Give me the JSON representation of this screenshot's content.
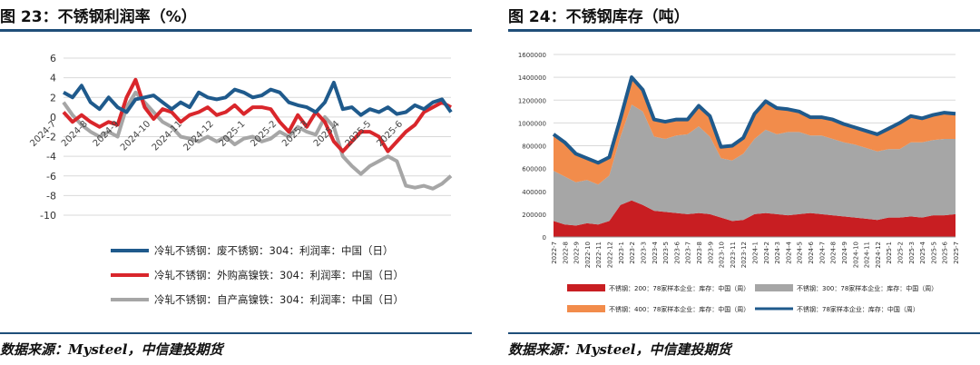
{
  "figures": [
    {
      "title": "图 23：不锈钢利润率（%）",
      "source": "数据来源：Mysteel，中信建投期货"
    },
    {
      "title": "图 24：不锈钢库存（吨）",
      "source": "数据来源：Mysteel，中信建投期货"
    }
  ],
  "chart_data": [
    {
      "type": "line",
      "title": "不锈钢利润率（%）",
      "ylim": [
        -10,
        6
      ],
      "yticks": [
        6,
        4,
        2,
        0,
        -2,
        -4,
        -6,
        -8,
        -10
      ],
      "xticks": [
        "2024-7",
        "2024-8",
        "2024-9",
        "2024-10",
        "2024-11",
        "2024-12",
        "2025-1",
        "2025-2",
        "2025-3",
        "2025-4",
        "2025-5",
        "2025-6"
      ],
      "grid": true,
      "legend_position": "bottom",
      "series": [
        {
          "name": "冷轧不锈钢：废不锈钢：304：利润率：中国（日）",
          "color": "#1f5a8c",
          "values": [
            2.5,
            2.0,
            3.2,
            1.5,
            0.8,
            2.0,
            1.0,
            0.5,
            1.8,
            2.0,
            2.2,
            1.5,
            0.8,
            1.5,
            1.0,
            2.5,
            2.0,
            1.8,
            2.0,
            2.8,
            2.5,
            2.0,
            2.2,
            2.8,
            2.5,
            1.5,
            1.2,
            1.0,
            0.5,
            1.5,
            3.5,
            0.8,
            1.0,
            0.2,
            0.8,
            0.5,
            1.0,
            0.3,
            0.5,
            1.2,
            0.8,
            1.5,
            1.8,
            0.5
          ]
        },
        {
          "name": "冷轧不锈钢：外购高镍铁：304：利润率：中国（日）",
          "color": "#d9262b",
          "values": [
            0.5,
            -0.5,
            0.2,
            -0.5,
            -1.0,
            -0.5,
            -0.8,
            2.0,
            3.8,
            1.0,
            -0.2,
            0.8,
            0.5,
            -0.5,
            0.2,
            0.5,
            1.0,
            0.2,
            0.5,
            1.2,
            0.3,
            1.0,
            1.0,
            0.8,
            -0.5,
            -1.5,
            0.2,
            -1.0,
            0.5,
            -0.5,
            -2.5,
            -3.5,
            -2.5,
            -1.5,
            -1.5,
            -2.0,
            -3.5,
            -2.5,
            -1.5,
            -0.8,
            0.5,
            1.0,
            1.5,
            1.0
          ]
        },
        {
          "name": "冷轧不锈钢：自产高镍铁：304：利润率：中国（日）",
          "color": "#a6a6a6",
          "values": [
            1.5,
            0.2,
            -0.8,
            -1.5,
            -2.0,
            -1.5,
            -2.0,
            1.0,
            2.5,
            1.5,
            0.5,
            -0.5,
            -1.0,
            -2.0,
            -2.2,
            -2.5,
            -2.0,
            -2.5,
            -2.0,
            -2.8,
            -2.2,
            -2.0,
            -2.5,
            -2.2,
            -1.5,
            -2.0,
            -1.0,
            -1.5,
            -1.8,
            0.0,
            -1.0,
            -4.0,
            -5.0,
            -5.8,
            -5.0,
            -4.5,
            -4.0,
            -4.5,
            -7.0,
            -7.2,
            -7.0,
            -7.3,
            -6.8,
            -6.0
          ]
        }
      ]
    },
    {
      "type": "area",
      "title": "不锈钢库存（吨）",
      "ylim": [
        0,
        1600000
      ],
      "yticks": [
        0,
        200000,
        400000,
        600000,
        800000,
        1000000,
        1200000,
        1400000,
        1600000
      ],
      "categories": [
        "2022-7",
        "2022-8",
        "2022-9",
        "2022-10",
        "2022-11",
        "2022-12",
        "2023-1",
        "2023-2",
        "2023-3",
        "2023-4",
        "2023-5",
        "2023-6",
        "2023-7",
        "2023-8",
        "2023-9",
        "2023-10",
        "2023-11",
        "2023-12",
        "2024-1",
        "2024-2",
        "2024-3",
        "2024-4",
        "2024-5",
        "2024-6",
        "2024-7",
        "2024-8",
        "2024-9",
        "2024-10",
        "2024-11",
        "2024-12",
        "2025-1",
        "2025-2",
        "2025-3",
        "2025-4",
        "2025-5",
        "2025-6",
        "2025-7"
      ],
      "grid": true,
      "legend_position": "bottom",
      "series": [
        {
          "name": "不锈钢：200：78家样本企业：库存：中国（周）",
          "color": "#c81e22",
          "kind": "area",
          "values": [
            140000,
            110000,
            100000,
            120000,
            110000,
            140000,
            280000,
            320000,
            280000,
            230000,
            220000,
            210000,
            200000,
            210000,
            200000,
            170000,
            140000,
            150000,
            200000,
            210000,
            200000,
            190000,
            200000,
            210000,
            200000,
            190000,
            180000,
            170000,
            160000,
            150000,
            170000,
            170000,
            180000,
            170000,
            190000,
            190000,
            200000
          ]
        },
        {
          "name": "不锈钢：300：78家样本企业：库存：中国（周）",
          "color": "#a6a6a6",
          "kind": "area",
          "values": [
            440000,
            420000,
            380000,
            380000,
            350000,
            400000,
            600000,
            840000,
            820000,
            650000,
            640000,
            680000,
            700000,
            760000,
            680000,
            520000,
            530000,
            580000,
            660000,
            730000,
            700000,
            730000,
            720000,
            680000,
            690000,
            670000,
            650000,
            640000,
            620000,
            600000,
            600000,
            600000,
            650000,
            660000,
            660000,
            670000,
            660000
          ]
        },
        {
          "name": "不锈钢：400：78家样本企业：库存：中国（周）",
          "color": "#f28c4b",
          "kind": "area",
          "values": [
            320000,
            300000,
            250000,
            190000,
            190000,
            160000,
            160000,
            240000,
            190000,
            150000,
            150000,
            140000,
            130000,
            180000,
            180000,
            100000,
            130000,
            140000,
            220000,
            250000,
            230000,
            200000,
            180000,
            160000,
            160000,
            170000,
            160000,
            150000,
            150000,
            150000,
            180000,
            230000,
            230000,
            210000,
            220000,
            230000,
            220000
          ]
        },
        {
          "name": "不锈钢：78家样本企业：库存：中国（周）",
          "color": "#1f5a8c",
          "kind": "line",
          "values": [
            900000,
            830000,
            730000,
            690000,
            650000,
            700000,
            1040000,
            1400000,
            1290000,
            1030000,
            1010000,
            1030000,
            1030000,
            1150000,
            1060000,
            790000,
            800000,
            870000,
            1080000,
            1190000,
            1130000,
            1120000,
            1100000,
            1050000,
            1050000,
            1030000,
            990000,
            960000,
            930000,
            900000,
            950000,
            1000000,
            1060000,
            1040000,
            1070000,
            1090000,
            1080000
          ]
        }
      ]
    }
  ]
}
